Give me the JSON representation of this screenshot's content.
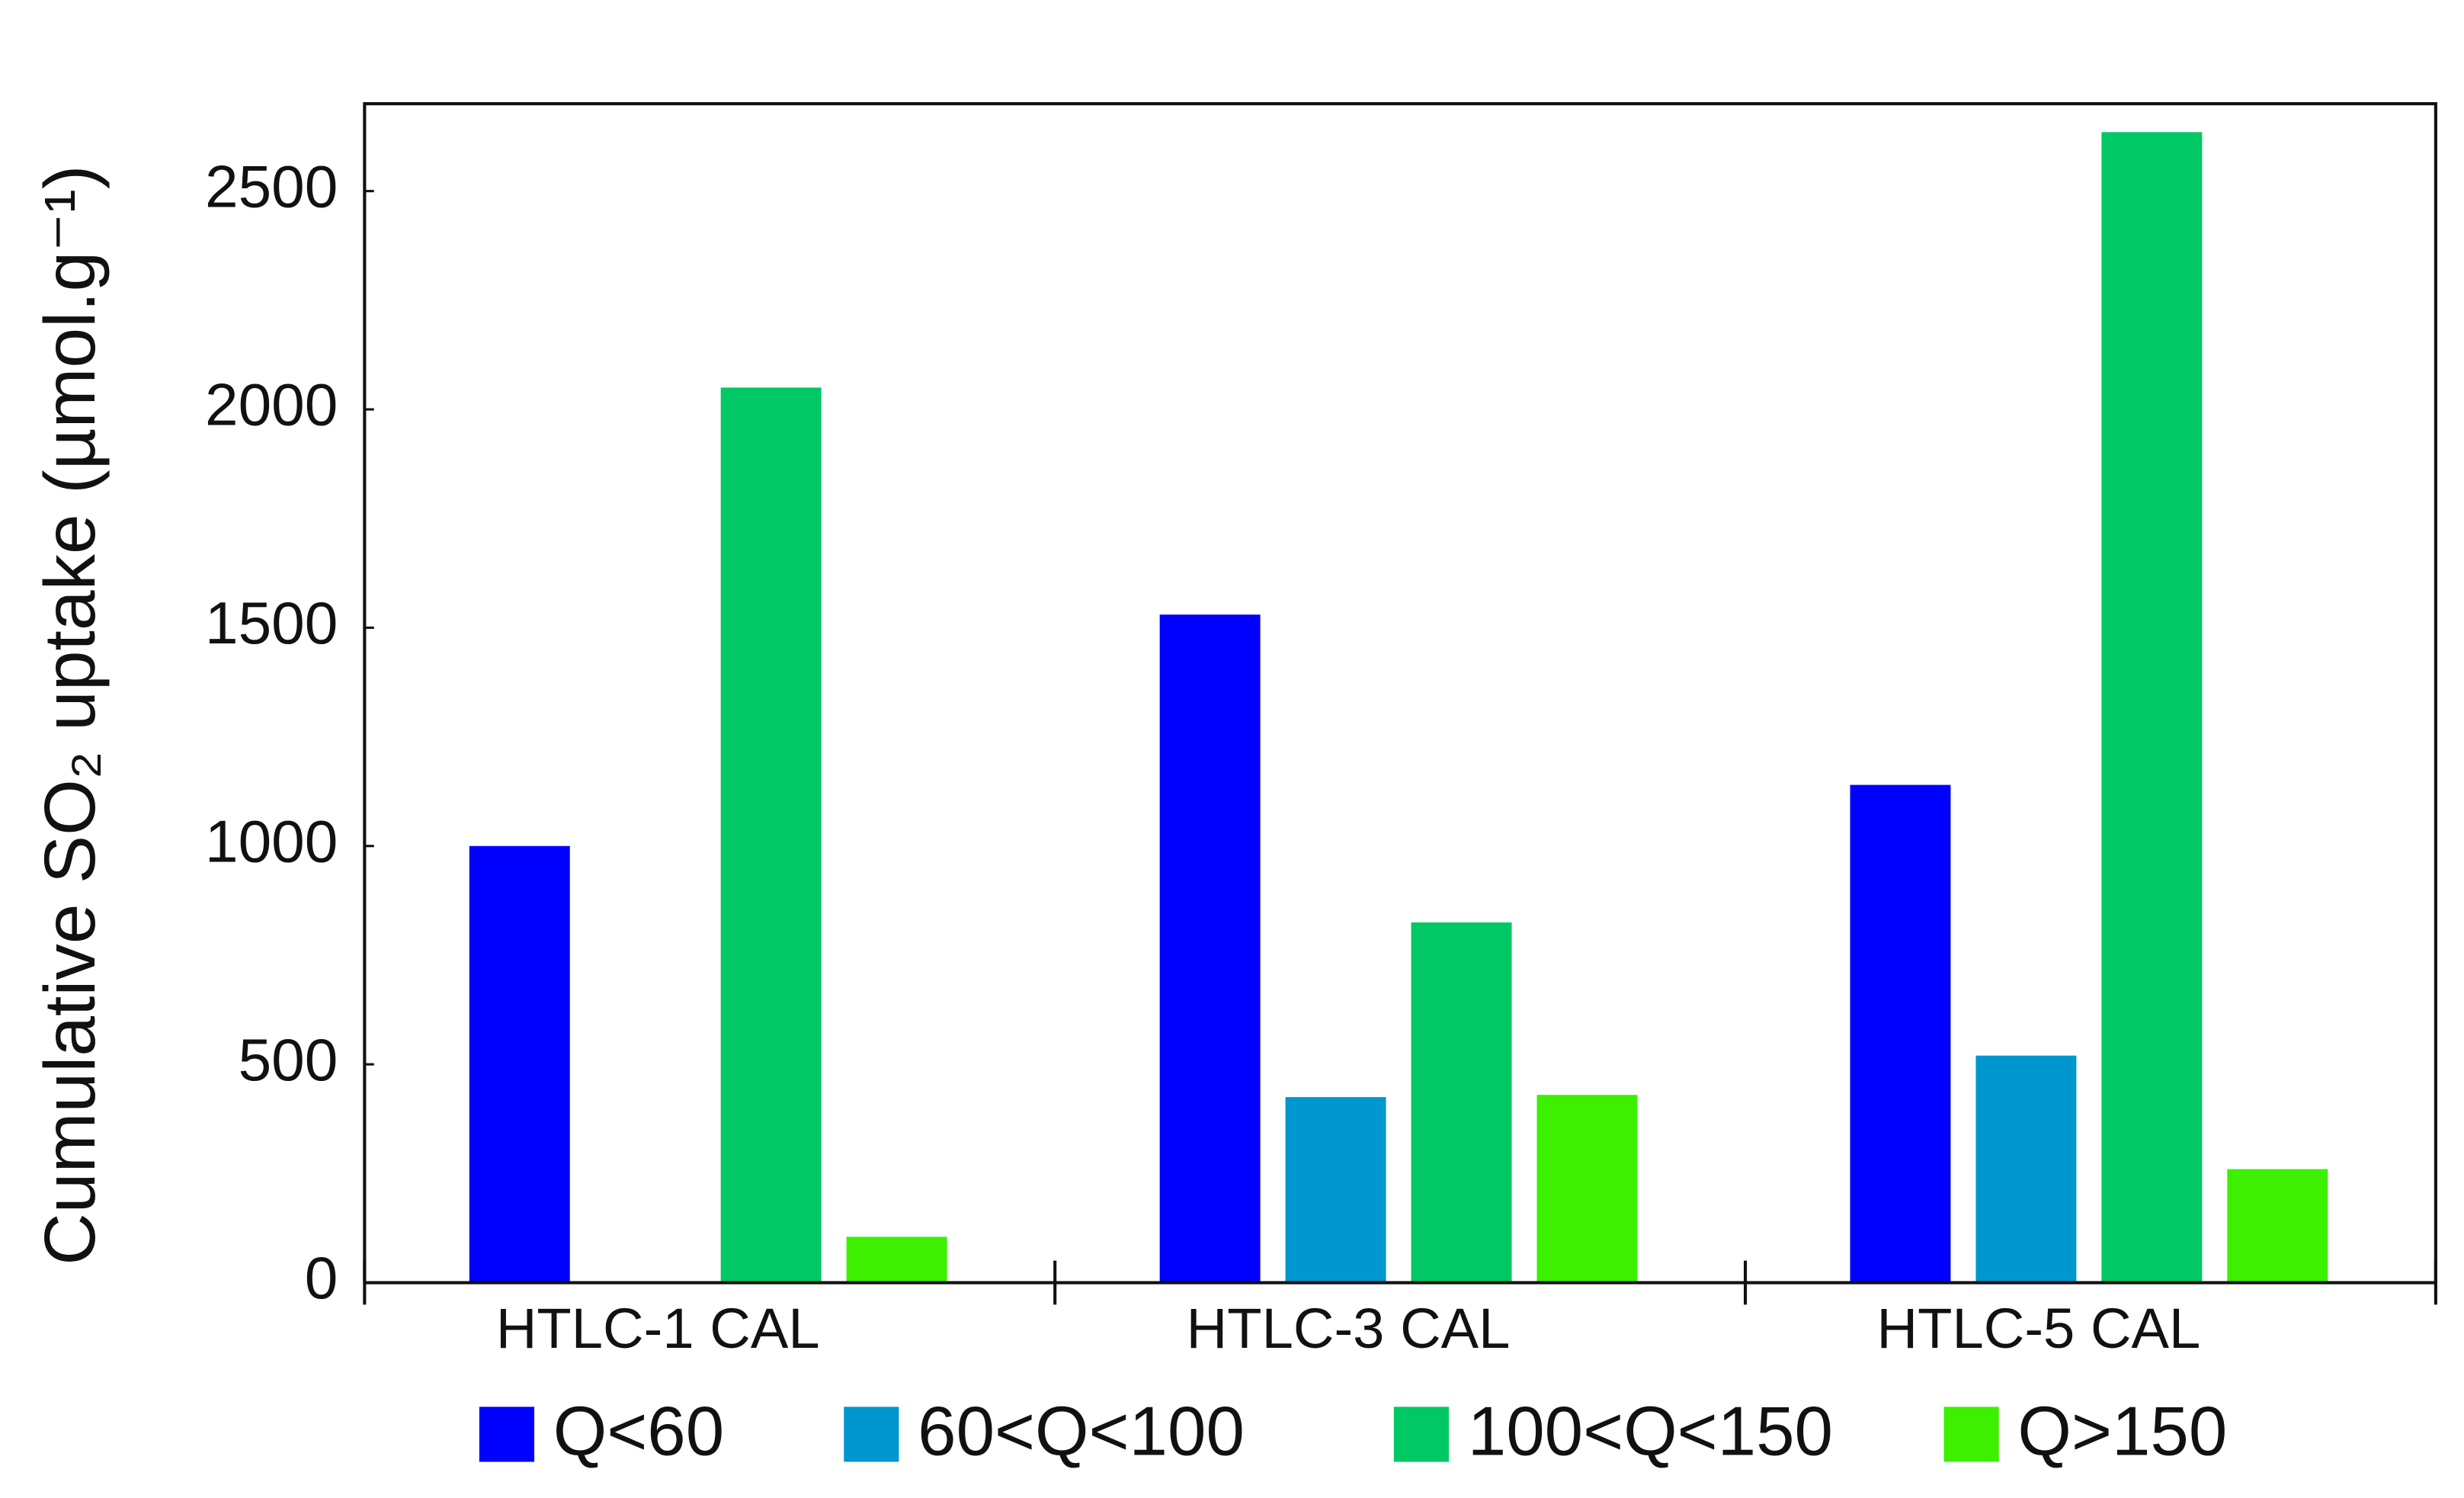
{
  "chart_data": {
    "type": "bar",
    "y_label": "Cumulative SO₂ uptake (µmol.g⁻¹)",
    "categories": [
      "HTLC-1 CAL",
      "HTLC-3 CAL",
      "HTLC-5 CAL"
    ],
    "series": [
      {
        "name": "Q<60",
        "color": "#0000ff",
        "values": [
          1000,
          1530,
          1140
        ]
      },
      {
        "name": "60<Q<100",
        "color": "#0097cf",
        "values": [
          0,
          425,
          520
        ]
      },
      {
        "name": "100<Q<150",
        "color": "#00c864",
        "values": [
          2050,
          825,
          2635
        ]
      },
      {
        "name": "Q>150",
        "color": "#3cf000",
        "values": [
          105,
          430,
          260
        ]
      }
    ],
    "ylim": [
      0,
      2700
    ],
    "yticks": [
      0,
      500,
      1000,
      1500,
      2000,
      2500
    ],
    "grid": false,
    "legend": "bottom"
  }
}
